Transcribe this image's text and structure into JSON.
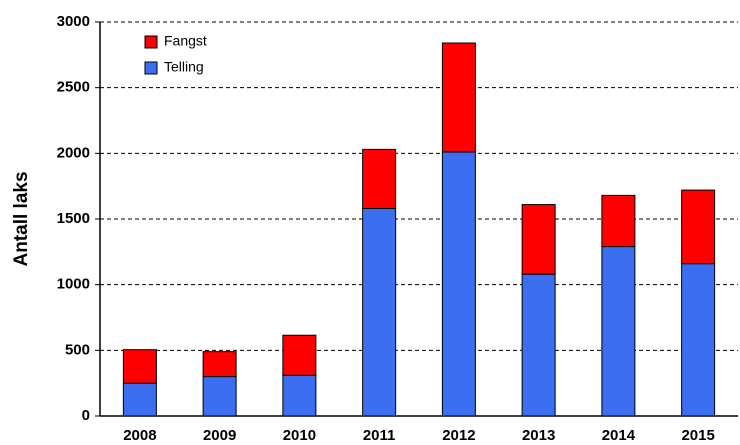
{
  "chart_data": {
    "type": "stacked_bar",
    "y_label": "Antall laks",
    "categories": [
      "2008",
      "2009",
      "2010",
      "2011",
      "2012",
      "2013",
      "2014",
      "2015"
    ],
    "series": [
      {
        "name": "Telling",
        "color": "#3b6ef0",
        "values": [
          250,
          300,
          310,
          1580,
          2010,
          1080,
          1290,
          1160
        ]
      },
      {
        "name": "Fangst",
        "color": "#ff0000",
        "values": [
          255,
          190,
          305,
          450,
          830,
          530,
          390,
          560
        ]
      }
    ],
    "ylim": [
      0,
      3000
    ],
    "yticks": [
      0,
      500,
      1000,
      1500,
      2000,
      2500,
      3000
    ],
    "grid": true
  }
}
